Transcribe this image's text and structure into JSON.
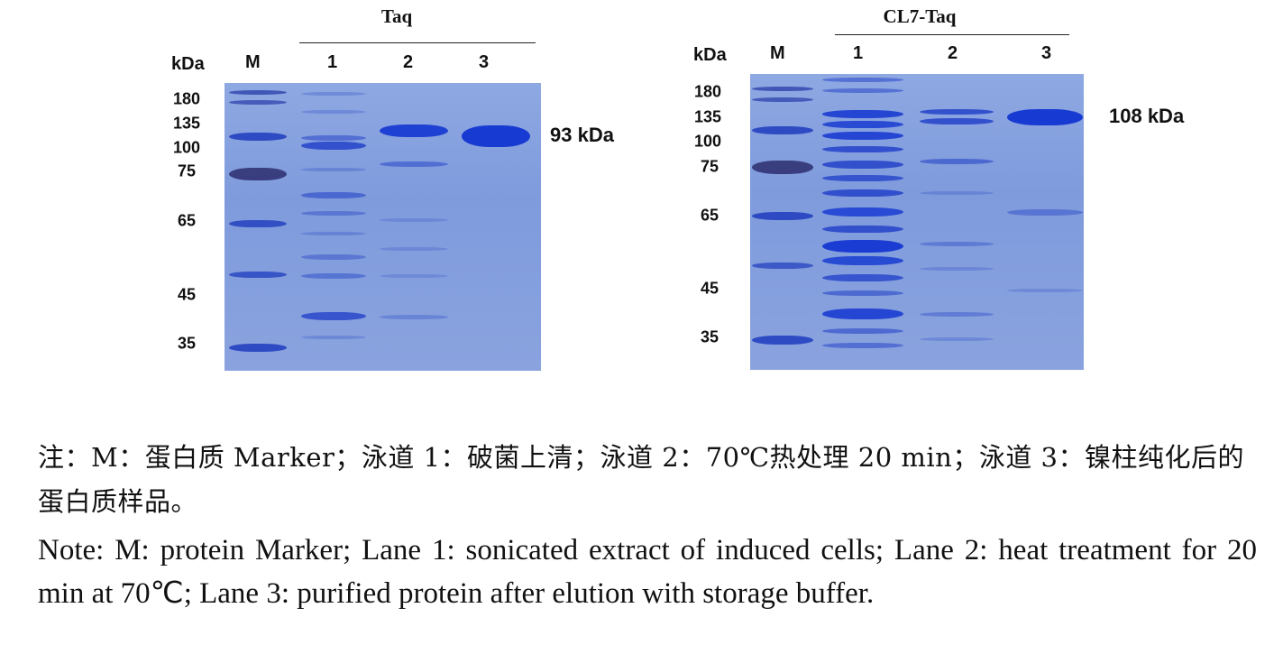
{
  "gels": [
    {
      "id": "taq",
      "group_title": "Taq",
      "unit_label": "kDa",
      "lane_labels": [
        "M",
        "1",
        "2",
        "3"
      ],
      "marker_labels": [
        "180",
        "135",
        "100",
        "75",
        "65",
        "45",
        "35"
      ],
      "band_annotation": "93 kDa"
    },
    {
      "id": "cl7-taq",
      "group_title": "CL7-Taq",
      "unit_label": "kDa",
      "lane_labels": [
        "M",
        "1",
        "2",
        "3"
      ],
      "marker_labels": [
        "180",
        "135",
        "100",
        "75",
        "65",
        "45",
        "35"
      ],
      "band_annotation": "108 kDa"
    }
  ],
  "caption": {
    "chinese": "注：M：蛋白质 Marker；泳道 1：破菌上清；泳道 2：70℃热处理 20 min；泳道 3：镍柱纯化后的蛋白质样品。",
    "english": "Note: M: protein Marker; Lane 1: sonicated extract of induced cells; Lane 2: heat treatment for 20 min at 70℃; Lane 3: purified protein after elution with storage buffer."
  },
  "colors": {
    "gel_background": "#849fde",
    "band_dark": "#1f45c8"
  }
}
